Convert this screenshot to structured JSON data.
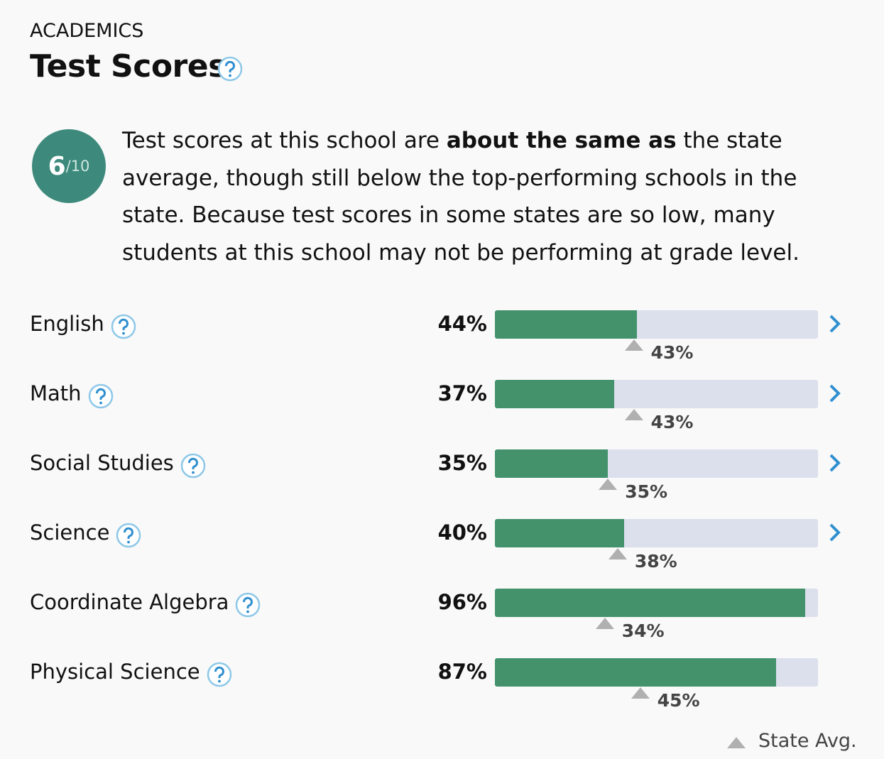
{
  "section": "ACADEMICS",
  "title": "Test Scores",
  "rating": {
    "score": "6",
    "scale": "/10"
  },
  "description": {
    "before": "Test scores at this school are",
    "emphasis": "about the same as",
    "after": "the state average, though still below the top-performing schools in the state. Because test scores in some states are so low, many students at this school may not be performing at grade level."
  },
  "chart_data": {
    "type": "bar",
    "categories": [
      "English",
      "Math",
      "Social Studies",
      "Science",
      "Coordinate Algebra",
      "Physical Science"
    ],
    "values": [
      44,
      37,
      35,
      40,
      96,
      87
    ],
    "value_labels": [
      "44%",
      "37%",
      "35%",
      "40%",
      "96%",
      "87%"
    ],
    "state_avg": [
      43,
      43,
      35,
      38,
      34,
      45
    ],
    "state_avg_labels": [
      "43%",
      "43%",
      "35%",
      "38%",
      "34%",
      "45%"
    ],
    "has_details": [
      true,
      true,
      true,
      true,
      false,
      false
    ],
    "xlim": [
      0,
      100
    ],
    "color": "#43926b",
    "track_color": "#dcdfec",
    "marker_color": "#b0b0b0",
    "legend": "State Avg."
  }
}
